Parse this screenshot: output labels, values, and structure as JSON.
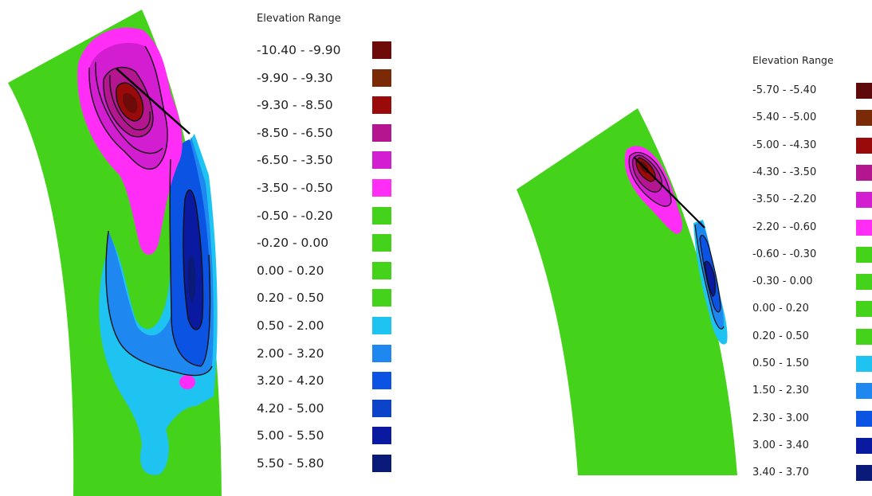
{
  "colors": {
    "green": "#44d21b",
    "light_blue": "#1ec3f2",
    "mid_blue": "#1e88f0",
    "blue": "#0b53e2",
    "navy": "#0b2fa8",
    "dark_navy": "#0a1a8a",
    "pink": "#ff2df5",
    "magenta": "#d21ed0",
    "deep_magenta": "#b4168f",
    "red": "#9b0a0a",
    "brown": "#7a2a06",
    "maroon": "#6d0a0a"
  },
  "left_legend": {
    "title": "Elevation Range",
    "items": [
      {
        "label": "-10.40 - -9.90",
        "color": "#6d0a0a"
      },
      {
        "label": "-9.90 - -9.30",
        "color": "#7a2a06"
      },
      {
        "label": "-9.30 - -8.50",
        "color": "#9b0a0a"
      },
      {
        "label": "-8.50 - -6.50",
        "color": "#b4168f"
      },
      {
        "label": "-6.50 - -3.50",
        "color": "#d21ed0"
      },
      {
        "label": "-3.50 - -0.50",
        "color": "#ff2df5"
      },
      {
        "label": "-0.50 - -0.20",
        "color": "#44d21b"
      },
      {
        "label": "-0.20 - 0.00",
        "color": "#44d21b"
      },
      {
        "label": "0.00 - 0.20",
        "color": "#44d21b"
      },
      {
        "label": "0.20 - 0.50",
        "color": "#44d21b"
      },
      {
        "label": "0.50 - 2.00",
        "color": "#1ec3f2"
      },
      {
        "label": "2.00 - 3.20",
        "color": "#1e88f0"
      },
      {
        "label": "3.20 - 4.20",
        "color": "#0b53e2"
      },
      {
        "label": "4.20 - 5.00",
        "color": "#0b44c8"
      },
      {
        "label": "5.00 - 5.50",
        "color": "#0a1aa0"
      },
      {
        "label": "5.50 - 5.80",
        "color": "#0a1a78"
      }
    ]
  },
  "right_legend": {
    "title": "Elevation Range",
    "items": [
      {
        "label": "-5.70 - -5.40",
        "color": "#5e0a0a"
      },
      {
        "label": "-5.40 - -5.00",
        "color": "#7a2a06"
      },
      {
        "label": "-5.00 - -4.30",
        "color": "#9b0a0a"
      },
      {
        "label": "-4.30 - -3.50",
        "color": "#b4168f"
      },
      {
        "label": "-3.50 - -2.20",
        "color": "#d21ed0"
      },
      {
        "label": "-2.20 - -0.60",
        "color": "#ff2df5"
      },
      {
        "label": "-0.60 - -0.30",
        "color": "#44d21b"
      },
      {
        "label": "-0.30 - 0.00",
        "color": "#44d21b"
      },
      {
        "label": "0.00 - 0.20",
        "color": "#44d21b"
      },
      {
        "label": "0.20 - 0.50",
        "color": "#44d21b"
      },
      {
        "label": "0.50 - 1.50",
        "color": "#1ec3f2"
      },
      {
        "label": "1.50 - 2.30",
        "color": "#1e88f0"
      },
      {
        "label": "2.30 - 3.00",
        "color": "#0b53e2"
      },
      {
        "label": "3.00 - 3.40",
        "color": "#0a1aa0"
      },
      {
        "label": "3.40 - 3.70",
        "color": "#0a1a78"
      }
    ]
  }
}
